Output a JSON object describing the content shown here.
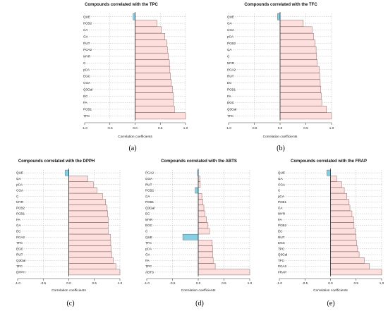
{
  "colors": {
    "positive": "#fde0dd",
    "negative": "#87cde4",
    "bar_stroke": "#7a5a5a",
    "grid": "#b7b7b7"
  },
  "chart_data": [
    {
      "type": "bar",
      "orientation": "horizontal",
      "title": "Compounds correlated with the TPC",
      "xlabel": "Correlation coefficients",
      "panel_label": "(a)",
      "xlim": [
        -1.0,
        1.0
      ],
      "xticks": [
        "-1.0",
        "-0.5",
        "0.0",
        "0.5",
        "1.0"
      ],
      "grid": true,
      "categories": [
        "QUE",
        "PCB2",
        "CA",
        "GA",
        "RUT",
        "PCA2",
        "MYR",
        "C",
        "pCA",
        "EGC",
        "CGA",
        "Q3Gal",
        "EC",
        "FA",
        "PCB1",
        "TPC"
      ],
      "values": [
        -0.04,
        0.43,
        0.52,
        0.59,
        0.63,
        0.64,
        0.66,
        0.68,
        0.69,
        0.7,
        0.72,
        0.74,
        0.76,
        0.76,
        0.78,
        1.0
      ]
    },
    {
      "type": "bar",
      "orientation": "horizontal",
      "title": "Compounds correlated with the TFC",
      "xlabel": "Correlation coefficients",
      "panel_label": "(b)",
      "xlim": [
        -1.0,
        1.0
      ],
      "xticks": [
        "-1.0",
        "-0.5",
        "0.0",
        "0.5",
        "1.0"
      ],
      "grid": true,
      "categories": [
        "QUE",
        "GA",
        "CGA",
        "pCA",
        "PCB2",
        "CA",
        "C",
        "MYR",
        "PCA2",
        "RUT",
        "EC",
        "PCB1",
        "FA",
        "EGC",
        "Q3Gal",
        "TFC"
      ],
      "values": [
        -0.05,
        0.45,
        0.62,
        0.65,
        0.68,
        0.7,
        0.71,
        0.72,
        0.76,
        0.77,
        0.78,
        0.79,
        0.8,
        0.81,
        0.9,
        1.0
      ]
    },
    {
      "type": "bar",
      "orientation": "horizontal",
      "title": "Compounds correlated with the DPPH",
      "xlabel": "Correlation coefficients",
      "panel_label": "(c)",
      "xlim": [
        -1.0,
        1.0
      ],
      "xticks": [
        "-1.0",
        "-0.5",
        "0.0",
        "0.5",
        "1.0"
      ],
      "grid": true,
      "categories": [
        "QUE",
        "GA",
        "pCA",
        "CGA",
        "C",
        "MYR",
        "PCB2",
        "PCB1",
        "FA",
        "CA",
        "EC",
        "PCA2",
        "TPC",
        "EGC",
        "RUT",
        "Q3Gal",
        "TFC",
        "DPPH"
      ],
      "values": [
        -0.07,
        0.37,
        0.48,
        0.55,
        0.66,
        0.72,
        0.75,
        0.76,
        0.77,
        0.77,
        0.77,
        0.81,
        0.82,
        0.83,
        0.84,
        0.87,
        0.92,
        1.0
      ]
    },
    {
      "type": "bar",
      "orientation": "horizontal",
      "title": "Compounds correlated with the ABTS",
      "xlabel": "Correlation coefficients",
      "panel_label": "(d)",
      "xlim": [
        -1.0,
        1.0
      ],
      "xticks": [
        "-1.0",
        "-0.5",
        "0.0",
        "0.5",
        "1.0"
      ],
      "grid": true,
      "categories": [
        "PCA2",
        "CGA",
        "RUT",
        "PCB2",
        "CA",
        "PCB1",
        "Q3Gal",
        "EC",
        "MYR",
        "EGC",
        "C",
        "QUE",
        "TFC",
        "pCA",
        "GA",
        "FA",
        "TPC",
        "ABTS"
      ],
      "values": [
        -0.01,
        0.03,
        0.04,
        -0.06,
        0.07,
        0.09,
        0.11,
        0.13,
        0.16,
        0.19,
        0.22,
        -0.3,
        0.27,
        0.28,
        0.28,
        0.29,
        0.33,
        1.0
      ]
    },
    {
      "type": "bar",
      "orientation": "horizontal",
      "title": "Compounds correlated with the FRAP",
      "xlabel": "Correlation coefficients",
      "panel_label": "(e)",
      "xlim": [
        -1.0,
        1.0
      ],
      "xticks": [
        "-1.0",
        "-0.5",
        "0.0",
        "0.5",
        "1.0"
      ],
      "grid": true,
      "categories": [
        "QUE",
        "GA",
        "CGA",
        "C",
        "pCA",
        "PCB1",
        "CA",
        "MYR",
        "FA",
        "PCB2",
        "EC",
        "RUT",
        "EGC",
        "TPC",
        "Q3Gal",
        "TFC",
        "PCA2",
        "FRAP"
      ],
      "values": [
        -0.07,
        0.12,
        0.22,
        0.27,
        0.32,
        0.36,
        0.38,
        0.42,
        0.45,
        0.46,
        0.48,
        0.5,
        0.51,
        0.53,
        0.56,
        0.66,
        0.76,
        1.0
      ]
    }
  ]
}
